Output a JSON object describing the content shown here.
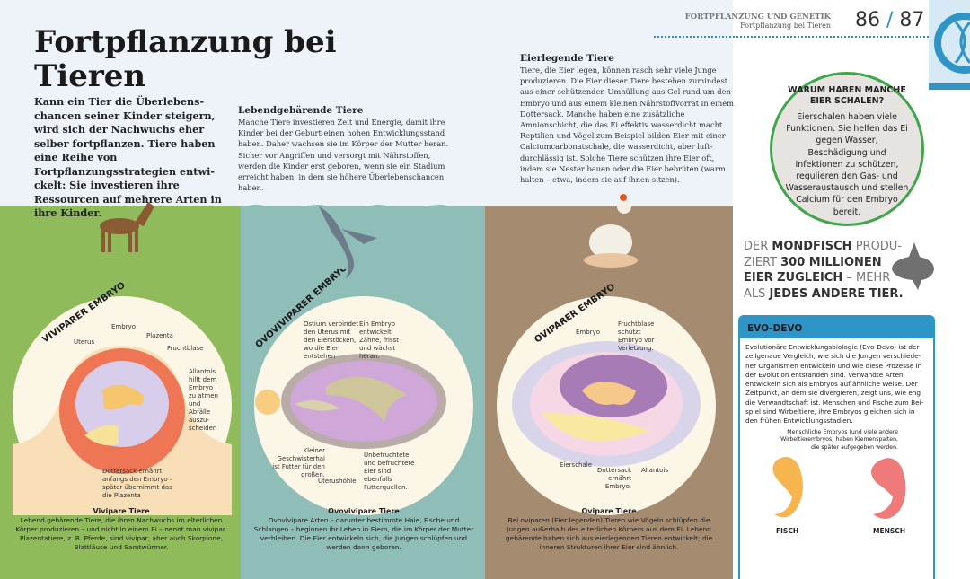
{
  "header": {
    "chapter": "FORTPFLANZUNG UND GENETIK",
    "topic": "Fortpflanzung bei Tieren",
    "page_left": "86",
    "page_sep": "/",
    "page_right": "87",
    "icon": "dna-magnifier-icon"
  },
  "title": "Fortpflanzung bei Tieren",
  "intro": "Kann ein Tier die Überlebens­chancen seiner Kinder steigern, wird sich der Nachwuchs eher selber fortpflanzen. Tiere haben eine Reihe von Fortpflanzungsstrategien entwi­ckelt: Sie investieren ihre Ressour­cen auf mehrere Arten in ihre Kinder.",
  "sections": [
    {
      "heading": "Lebendgebärende Tiere",
      "text": "Manche Tiere investieren Zeit und Energie, damit ihre Kinder bei der Geburt einen hohen Entwicklungsstand haben. Daher wachsen sie im Körper der Mutter heran. Sicher vor Angriffen und versorgt mit Nährstoffen, werden die Kinder erst geboren, wenn sie ein Stadium erreicht haben, in dem sie höhere Überlebenschancen haben."
    },
    {
      "heading": "Eierlegende Tiere",
      "text": "Tiere, die Eier legen, können rasch sehr viele Junge produzieren. Die Eier dieser Tiere bestehen zumindest aus einer schützenden Umhüllung aus Gel rund um den Embryo und aus einem kleinen Nährstoffvorrat in einem Dottersack. Manche haben eine zusätzliche Amnionschicht, die das Ei effektiv wasserdicht macht. Reptilien und Vögel zum Beispiel bilden Eier mit einer Calciumcarbonatschale, die wasserdicht, aber luft­durchlässig ist. Solche Tiere schützen ihre Eier oft, indem sie Nester bauen oder die Eier bebrüten (warm halten – etwa, indem sie auf ihnen sitzen)."
    }
  ],
  "panels": [
    {
      "arc": "VIVIPARER EMBRYO",
      "labels": [
        "Embryo",
        "Plazenta",
        "Uterus",
        "Fruchtblase",
        "Allantois hilft dem Embryo zu atmen und Abfälle auszu­scheiden",
        "Dottersack ernährt anfangs den Embryo – später über­nimmt das die Plazenta"
      ],
      "caption_title": "Vivipare Tiere",
      "caption": "Lebend gebärende Tiere, die ihren Nachwuchs im elterlichen Körper produzieren – und nicht in einem Ei – nennt man vivipar. Plazentatiere, z. B. Pferde, sind vivi­par, aber auch Skorpione, Blattläuse und Samtwürmer.",
      "color": "#8fbb5b"
    },
    {
      "arc": "OVOVIVIPARER EMBRYO",
      "labels": [
        "Ostium verbindet den Uterus mit den Eierstöcken, wo die Eier entstehen",
        "Ein Embryo entwickelt Zähne, frisst und wächst heran.",
        "Kleiner Geschwister­hai ist Futter für den großen.",
        "Uterushöhle",
        "Unbefruchtete und befruchtete Eier sind ebenfalls Futterquellen."
      ],
      "caption_title": "Ovovivipare Tiere",
      "caption": "Ovovivipare Arten – darunter bestimmte Haie, Fische und Schlangen – beginnen ihr Leben in Eiern, die im Körper der Mutter verbleiben. Die Eier entwickeln sich, die Jun­gen schlüpfen und werden dann geboren.",
      "color": "#8fbdb8"
    },
    {
      "arc": "OVIPARER EMBRYO",
      "labels": [
        "Embryo",
        "Fruchtblase schützt Embryo vor Verletzung.",
        "Eierschale",
        "Dottersack ernährt Embryo.",
        "Allantois"
      ],
      "caption_title": "Ovipare Tiere",
      "caption": "Bei oviparen (Eier legenden) Tieren wie Vögeln schlüpfen die Jungen außerhalb des elterlichen Körpers aus dem Ei. Lebend gebärende haben sich aus eierlegenden Tieren entwickelt; die inneren Strukturen ihrer Eier sind ähnlich.",
      "color": "#a58b70"
    }
  ],
  "question": {
    "title": "WARUM HABEN MANCHE EIER SCHALEN?",
    "text": "Eierschalen haben viele Funktionen. Sie helfen das Ei gegen Wasser, Beschädigung und Infektionen zu schützen, regulieren den Gas- und Was­seraustausch und stellen Calcium für den Embryo bereit."
  },
  "fact": {
    "p1": "DER ",
    "b1": "MONDFISCH",
    "p2": " PRODU­ZIERT ",
    "b2": "300 MILLIONEN EIER ZUGLEICH",
    "p3": " – MEHR ALS ",
    "b3": "JEDES ANDERE TIER."
  },
  "evo": {
    "title": "EVO-DEVO",
    "text": "Evolutionäre Entwicklungsbiologie (Evo-Devo) ist der zellgenaue Vergleich, wie sich die Jungen verschiede­ner Organismen entwickeln und wie diese Prozesse in der Evolution entstanden sind. Verwandte Arten entwickeln sich als Embryos auf ähnliche Weise. Der Zeitpunkt, an dem sie divergieren, zeigt uns, wie eng die Verwandtschaft ist. Menschen und Fische zum Bei­spiel sind Wirbeltiere, ihre Embryos gleichen sich in den frühen Entwicklungsstadien.",
    "note": "Menschliche Embryos (und viele andere Wirbeltierembryos) haben Kiemenspal­ten, die später aufgegeben werden.",
    "fish": "FISCH",
    "human": "MENSCH"
  },
  "colors": {
    "accent": "#2e95c6",
    "green": "#3fa64a"
  }
}
